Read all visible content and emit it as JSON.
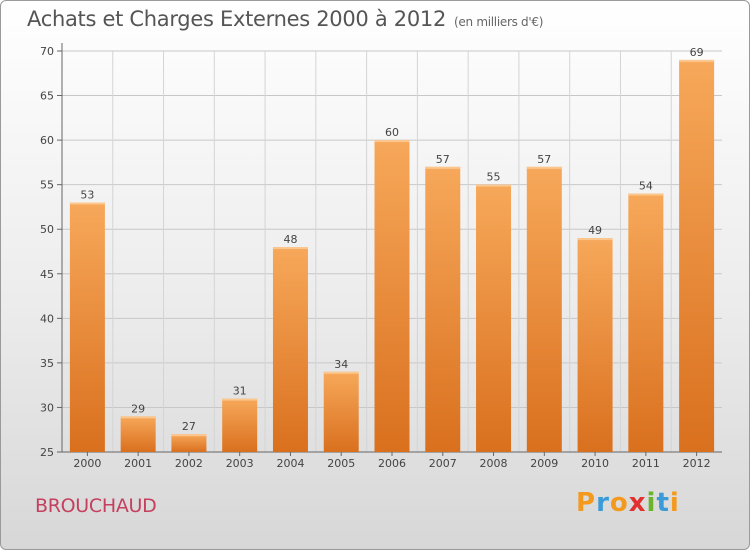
{
  "header": {
    "title": "Achats et Charges Externes 2000 à 2012",
    "unit": "(en milliers d'€)"
  },
  "footer": {
    "commune": "BROUCHAUD",
    "logo": {
      "letters": [
        "P",
        "r",
        "o",
        "x",
        "i",
        "t",
        "i"
      ],
      "colors": [
        "#f39a1e",
        "#3a9bd8",
        "#f39a1e",
        "#e0302f",
        "#6bb52d",
        "#3a9bd8",
        "#f39a1e"
      ]
    }
  },
  "chart_data": {
    "type": "bar",
    "title": "Achats et Charges Externes 2000 à 2012",
    "categories": [
      "2000",
      "2001",
      "2002",
      "2003",
      "2004",
      "2005",
      "2006",
      "2007",
      "2008",
      "2009",
      "2010",
      "2011",
      "2012"
    ],
    "values": [
      53,
      29,
      27,
      31,
      48,
      34,
      60,
      57,
      55,
      57,
      49,
      54,
      69
    ],
    "ylim": [
      25,
      70
    ],
    "yticks": [
      25,
      30,
      35,
      40,
      45,
      50,
      55,
      60,
      65,
      70
    ],
    "grid": true,
    "bar_color_top": "#f7a85a",
    "bar_color_bottom": "#d9701e"
  }
}
